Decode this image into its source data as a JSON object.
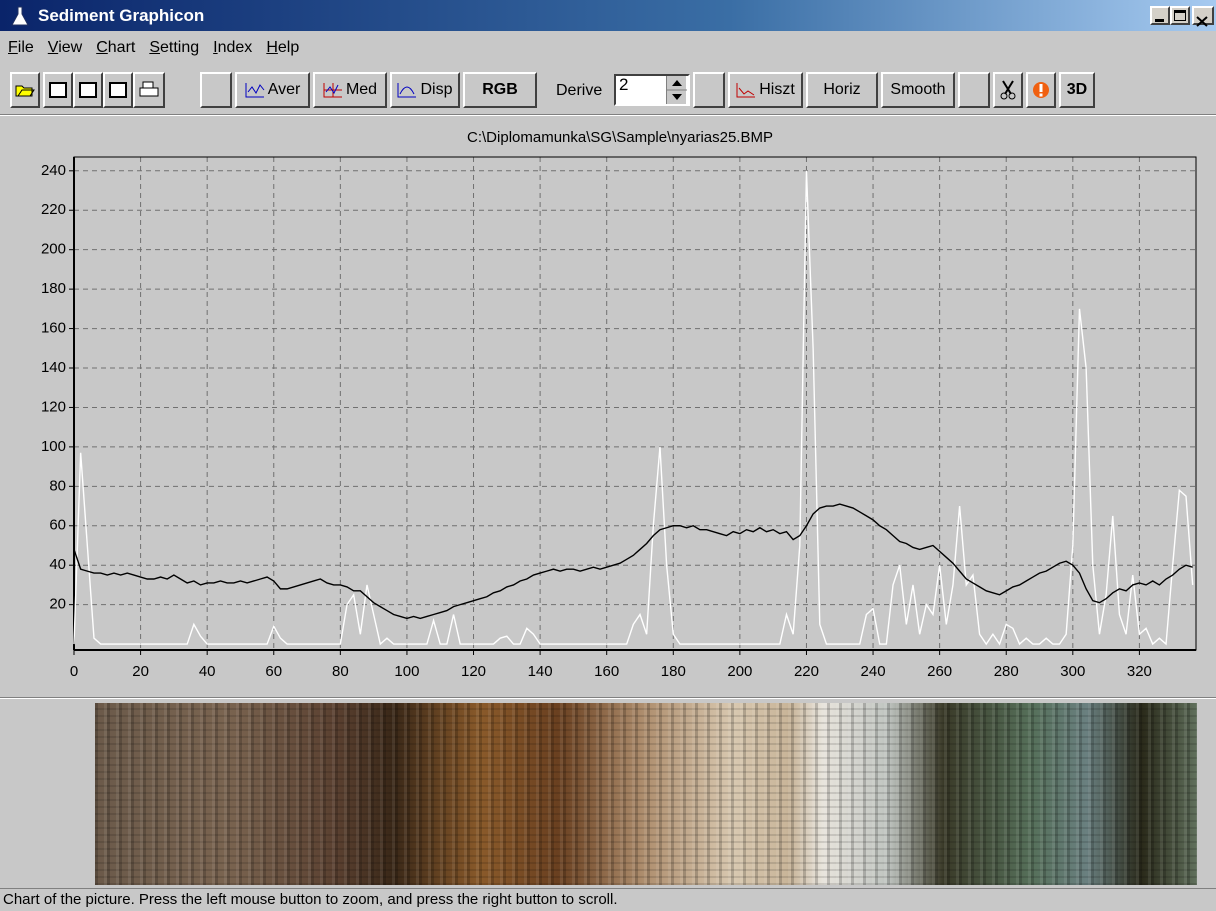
{
  "window": {
    "title": "Sediment Graphicon"
  },
  "menu": [
    "File",
    "View",
    "Chart",
    "Setting",
    "Index",
    "Help"
  ],
  "toolbar": {
    "aver": "Aver",
    "med": "Med",
    "disp": "Disp",
    "rgb": "RGB",
    "derive": "Derive",
    "derive_value": 2,
    "hiszt": "Hiszt",
    "horiz": "Horiz",
    "smooth": "Smooth",
    "three_d": "3D"
  },
  "chart_data": {
    "type": "line",
    "title": "C:\\Diplomamunka\\SG\\Sample\\nyarias25.BMP",
    "x": [
      0,
      2,
      4,
      6,
      8,
      10,
      12,
      14,
      16,
      18,
      20,
      22,
      24,
      26,
      28,
      30,
      32,
      34,
      36,
      38,
      40,
      42,
      44,
      46,
      48,
      50,
      52,
      54,
      56,
      58,
      60,
      62,
      64,
      66,
      68,
      70,
      72,
      74,
      76,
      78,
      80,
      82,
      84,
      86,
      88,
      90,
      92,
      94,
      96,
      98,
      100,
      102,
      104,
      106,
      108,
      110,
      112,
      114,
      116,
      118,
      120,
      122,
      124,
      126,
      128,
      130,
      132,
      134,
      136,
      138,
      140,
      142,
      144,
      146,
      148,
      150,
      152,
      154,
      156,
      158,
      160,
      162,
      164,
      166,
      168,
      170,
      172,
      174,
      176,
      178,
      180,
      182,
      184,
      186,
      188,
      190,
      192,
      194,
      196,
      198,
      200,
      202,
      204,
      206,
      208,
      210,
      212,
      214,
      216,
      218,
      220,
      222,
      224,
      226,
      228,
      230,
      232,
      234,
      236,
      238,
      240,
      242,
      244,
      246,
      248,
      250,
      252,
      254,
      256,
      258,
      260,
      262,
      264,
      266,
      268,
      270,
      272,
      274,
      276,
      278,
      280,
      282,
      284,
      286,
      288,
      290,
      292,
      294,
      296,
      298,
      300,
      302,
      304,
      306,
      308,
      310,
      312,
      314,
      316,
      318,
      320,
      322,
      324,
      326,
      328,
      330,
      332,
      334,
      336
    ],
    "series": [
      {
        "color": "#ffffff",
        "values": [
          0,
          97,
          50,
          3,
          0,
          0,
          0,
          0,
          0,
          0,
          0,
          0,
          0,
          0,
          0,
          0,
          0,
          0,
          10,
          4,
          0,
          0,
          0,
          0,
          0,
          0,
          0,
          0,
          0,
          0,
          9,
          3,
          0,
          0,
          0,
          0,
          0,
          0,
          0,
          0,
          0,
          20,
          25,
          5,
          30,
          15,
          0,
          3,
          0,
          0,
          0,
          0,
          0,
          0,
          12,
          0,
          0,
          15,
          0,
          0,
          0,
          0,
          0,
          0,
          3,
          4,
          0,
          0,
          8,
          5,
          0,
          0,
          0,
          0,
          0,
          0,
          0,
          0,
          0,
          0,
          0,
          0,
          0,
          0,
          10,
          15,
          5,
          60,
          100,
          40,
          5,
          0,
          0,
          0,
          0,
          0,
          0,
          0,
          0,
          0,
          0,
          0,
          0,
          0,
          0,
          0,
          0,
          15,
          5,
          50,
          240,
          150,
          10,
          0,
          0,
          0,
          0,
          0,
          0,
          15,
          18,
          0,
          0,
          30,
          40,
          10,
          30,
          5,
          20,
          15,
          40,
          10,
          30,
          70,
          30,
          35,
          5,
          0,
          5,
          0,
          10,
          8,
          0,
          3,
          0,
          0,
          3,
          0,
          0,
          5,
          50,
          170,
          140,
          40,
          5,
          25,
          65,
          15,
          5,
          35,
          5,
          8,
          0,
          3,
          0,
          40,
          78,
          75,
          30
        ]
      },
      {
        "color": "#000000",
        "values": [
          48,
          38,
          37,
          36,
          36,
          35,
          36,
          35,
          36,
          35,
          34,
          33,
          33,
          34,
          33,
          35,
          33,
          31,
          32,
          30,
          31,
          31,
          32,
          31,
          31,
          32,
          31,
          32,
          33,
          34,
          32,
          28,
          28,
          29,
          30,
          31,
          32,
          33,
          31,
          30,
          30,
          29,
          27,
          27,
          24,
          21,
          19,
          17,
          15,
          14,
          13,
          14,
          13,
          14,
          15,
          16,
          17,
          19,
          20,
          21,
          22,
          23,
          24,
          26,
          27,
          29,
          30,
          32,
          33,
          35,
          36,
          37,
          38,
          37,
          38,
          38,
          37,
          38,
          39,
          38,
          39,
          40,
          41,
          43,
          45,
          48,
          51,
          55,
          58,
          59,
          60,
          60,
          59,
          60,
          58,
          58,
          57,
          56,
          55,
          57,
          56,
          58,
          57,
          59,
          57,
          58,
          56,
          57,
          53,
          55,
          60,
          66,
          69,
          70,
          70,
          71,
          70,
          69,
          67,
          65,
          63,
          60,
          58,
          55,
          52,
          51,
          49,
          48,
          49,
          50,
          47,
          44,
          41,
          37,
          33,
          31,
          29,
          27,
          26,
          25,
          27,
          29,
          30,
          32,
          34,
          36,
          37,
          39,
          41,
          42,
          40,
          36,
          28,
          22,
          21,
          23,
          26,
          28,
          27,
          30,
          31,
          30,
          32,
          30,
          33,
          35,
          38,
          40,
          39
        ]
      }
    ],
    "xlim": [
      0,
      337
    ],
    "ylim": [
      -3,
      247
    ],
    "xticks": [
      0,
      20,
      40,
      60,
      80,
      100,
      120,
      140,
      160,
      180,
      200,
      220,
      240,
      260,
      280,
      300,
      320
    ],
    "yticks": [
      20,
      40,
      60,
      80,
      100,
      120,
      140,
      160,
      180,
      200,
      220,
      240
    ],
    "grid": true
  },
  "status": "Chart of the picture. Press the left mouse button to zoom, and press the right button to scroll."
}
